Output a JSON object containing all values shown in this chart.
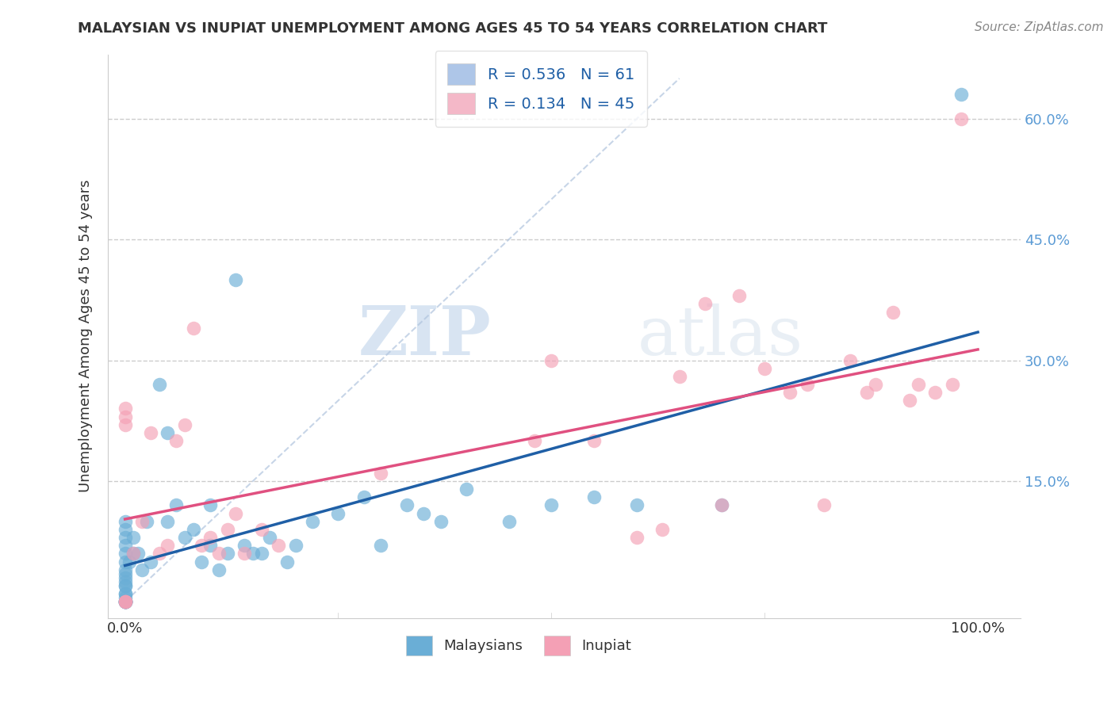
{
  "title": "MALAYSIAN VS INUPIAT UNEMPLOYMENT AMONG AGES 45 TO 54 YEARS CORRELATION CHART",
  "source": "Source: ZipAtlas.com",
  "ylabel": "Unemployment Among Ages 45 to 54 years",
  "xlim": [
    -0.02,
    1.05
  ],
  "ylim": [
    -0.02,
    0.68
  ],
  "xticks": [
    0.0,
    1.0
  ],
  "xtick_labels": [
    "0.0%",
    "100.0%"
  ],
  "yticks": [
    0.15,
    0.3,
    0.45,
    0.6
  ],
  "ytick_labels": [
    "15.0%",
    "30.0%",
    "45.0%",
    "60.0%"
  ],
  "legend_entries": [
    {
      "label": "R = 0.536   N = 61",
      "color": "#aec6e8"
    },
    {
      "label": "R = 0.134   N = 45",
      "color": "#f4b8c8"
    }
  ],
  "legend_labels_bottom": [
    "Malaysians",
    "Inupiat"
  ],
  "watermark_zip": "ZIP",
  "watermark_atlas": "atlas",
  "malaysian_color": "#6aaed6",
  "inupiat_color": "#f4a0b5",
  "trend_malaysian_color": "#1f5fa6",
  "trend_inupiat_color": "#e05080",
  "background_color": "#ffffff",
  "grid_color": "#cccccc",
  "malaysian_x": [
    0.0,
    0.0,
    0.0,
    0.0,
    0.0,
    0.0,
    0.0,
    0.0,
    0.0,
    0.0,
    0.0,
    0.0,
    0.0,
    0.0,
    0.0,
    0.0,
    0.0,
    0.0,
    0.0,
    0.0,
    0.0,
    0.0,
    0.005,
    0.01,
    0.01,
    0.015,
    0.02,
    0.025,
    0.03,
    0.04,
    0.05,
    0.05,
    0.06,
    0.07,
    0.08,
    0.09,
    0.1,
    0.1,
    0.11,
    0.12,
    0.13,
    0.14,
    0.15,
    0.16,
    0.17,
    0.19,
    0.2,
    0.22,
    0.25,
    0.28,
    0.3,
    0.33,
    0.35,
    0.37,
    0.4,
    0.45,
    0.5,
    0.55,
    0.6,
    0.7,
    0.98
  ],
  "malaysian_y": [
    0.0,
    0.0,
    0.0,
    0.0,
    0.0,
    0.0,
    0.0,
    0.005,
    0.01,
    0.01,
    0.02,
    0.02,
    0.025,
    0.03,
    0.035,
    0.04,
    0.05,
    0.06,
    0.07,
    0.08,
    0.09,
    0.1,
    0.05,
    0.06,
    0.08,
    0.06,
    0.04,
    0.1,
    0.05,
    0.27,
    0.21,
    0.1,
    0.12,
    0.08,
    0.09,
    0.05,
    0.07,
    0.12,
    0.04,
    0.06,
    0.4,
    0.07,
    0.06,
    0.06,
    0.08,
    0.05,
    0.07,
    0.1,
    0.11,
    0.13,
    0.07,
    0.12,
    0.11,
    0.1,
    0.14,
    0.1,
    0.12,
    0.13,
    0.12,
    0.12,
    0.63
  ],
  "inupiat_x": [
    0.0,
    0.0,
    0.0,
    0.0,
    0.0,
    0.0,
    0.01,
    0.02,
    0.03,
    0.04,
    0.05,
    0.06,
    0.07,
    0.08,
    0.09,
    0.1,
    0.11,
    0.12,
    0.13,
    0.14,
    0.16,
    0.18,
    0.55,
    0.6,
    0.63,
    0.65,
    0.7,
    0.75,
    0.78,
    0.8,
    0.82,
    0.85,
    0.87,
    0.88,
    0.9,
    0.92,
    0.93,
    0.95,
    0.97,
    0.98,
    0.72,
    0.68,
    0.5,
    0.48,
    0.3
  ],
  "inupiat_y": [
    0.0,
    0.0,
    0.0,
    0.22,
    0.23,
    0.24,
    0.06,
    0.1,
    0.21,
    0.06,
    0.07,
    0.2,
    0.22,
    0.34,
    0.07,
    0.08,
    0.06,
    0.09,
    0.11,
    0.06,
    0.09,
    0.07,
    0.2,
    0.08,
    0.09,
    0.28,
    0.12,
    0.29,
    0.26,
    0.27,
    0.12,
    0.3,
    0.26,
    0.27,
    0.36,
    0.25,
    0.27,
    0.26,
    0.27,
    0.6,
    0.38,
    0.37,
    0.3,
    0.2,
    0.16
  ]
}
